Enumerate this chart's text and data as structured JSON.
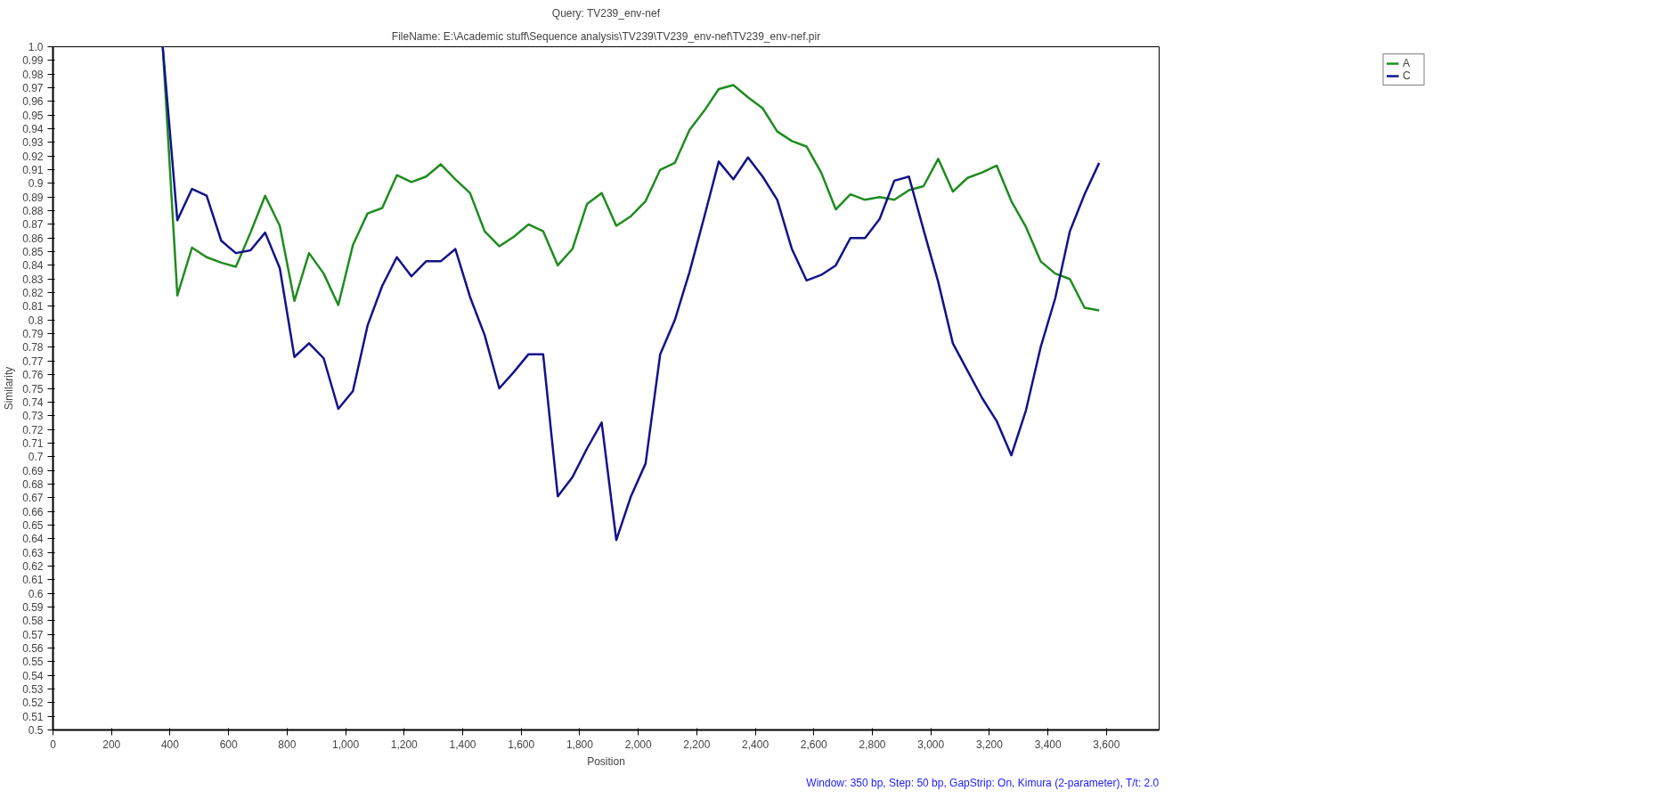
{
  "chart_data": {
    "type": "line",
    "title": "Query: TV239_env-nef",
    "subtitle": "FileName: E:\\Academic stuff\\Sequence analysis\\TV239\\TV239_env-nef\\TV239_env-nef.pir",
    "xlabel": "Position",
    "ylabel": "Similarity",
    "annotations": [
      "Window: 350 bp, Step: 50 bp, GapStrip: On, Kimura (2-parameter), T/t: 2.0"
    ],
    "x": [
      375,
      425,
      475,
      525,
      575,
      625,
      675,
      725,
      775,
      825,
      875,
      925,
      975,
      1025,
      1075,
      1125,
      1175,
      1225,
      1275,
      1325,
      1375,
      1425,
      1475,
      1525,
      1575,
      1625,
      1675,
      1725,
      1775,
      1825,
      1875,
      1925,
      1975,
      2025,
      2075,
      2125,
      2175,
      2225,
      2275,
      2325,
      2375,
      2425,
      2475,
      2525,
      2575,
      2625,
      2675,
      2725,
      2775,
      2825,
      2875,
      2925,
      2975,
      3025,
      3075,
      3125,
      3175,
      3225,
      3275,
      3325,
      3375,
      3425,
      3475,
      3525,
      3575
    ],
    "series": [
      {
        "name": "A",
        "color": "#1f8c1f",
        "values": [
          1.0,
          0.818,
          0.853,
          0.846,
          0.842,
          0.839,
          0.864,
          0.891,
          0.869,
          0.814,
          0.849,
          0.834,
          0.811,
          0.855,
          0.878,
          0.882,
          0.906,
          0.901,
          0.905,
          0.914,
          0.903,
          0.893,
          0.865,
          0.854,
          0.861,
          0.87,
          0.865,
          0.84,
          0.852,
          0.885,
          0.893,
          0.869,
          0.876,
          0.887,
          0.91,
          0.915,
          0.939,
          0.953,
          0.969,
          0.972,
          0.963,
          0.955,
          0.938,
          0.931,
          0.927,
          0.908,
          0.881,
          0.892,
          0.888,
          0.89,
          0.888,
          0.895,
          0.898,
          0.918,
          0.894,
          0.904,
          0.908,
          0.913,
          0.887,
          0.868,
          0.843,
          0.834,
          0.83,
          0.809,
          0.807
        ]
      },
      {
        "name": "C",
        "color": "#12128c",
        "values": [
          1.0,
          0.873,
          0.896,
          0.891,
          0.858,
          0.849,
          0.851,
          0.864,
          0.838,
          0.773,
          0.783,
          0.772,
          0.735,
          0.748,
          0.796,
          0.825,
          0.846,
          0.832,
          0.843,
          0.843,
          0.852,
          0.817,
          0.789,
          0.75,
          0.762,
          0.775,
          0.775,
          0.671,
          0.685,
          0.706,
          0.725,
          0.639,
          0.671,
          0.695,
          0.775,
          0.8,
          0.835,
          0.875,
          0.916,
          0.903,
          0.919,
          0.905,
          0.888,
          0.852,
          0.829,
          0.833,
          0.84,
          0.86,
          0.86,
          0.874,
          0.902,
          0.905,
          0.866,
          0.828,
          0.783,
          0.763,
          0.743,
          0.726,
          0.701,
          0.734,
          0.78,
          0.816,
          0.865,
          0.892,
          0.915
        ]
      }
    ],
    "xlim": [
      0,
      3780
    ],
    "xticks": [
      0,
      200,
      400,
      600,
      800,
      {
        "value": 1000,
        "label": "1,000"
      },
      {
        "value": 1200,
        "label": "1,200"
      },
      {
        "value": 1400,
        "label": "1,400"
      },
      {
        "value": 1600,
        "label": "1,600"
      },
      {
        "value": 1800,
        "label": "1,800"
      },
      {
        "value": 2000,
        "label": "2,000"
      },
      {
        "value": 2200,
        "label": "2,200"
      },
      {
        "value": 2400,
        "label": "2,400"
      },
      {
        "value": 2600,
        "label": "2,600"
      },
      {
        "value": 2800,
        "label": "2,800"
      },
      {
        "value": 3000,
        "label": "3,000"
      },
      {
        "value": 3200,
        "label": "3,200"
      },
      {
        "value": 3400,
        "label": "3,400"
      },
      {
        "value": 3600,
        "label": "3,600"
      }
    ],
    "ylim": [
      0.5,
      1.0
    ],
    "yticks": [
      0.5,
      0.51,
      0.52,
      0.53,
      0.54,
      0.55,
      0.56,
      0.57,
      0.58,
      0.59,
      0.6,
      0.61,
      0.62,
      0.63,
      0.64,
      0.65,
      0.66,
      0.67,
      0.68,
      0.69,
      0.7,
      0.71,
      0.72,
      0.73,
      0.74,
      0.75,
      0.76,
      0.77,
      0.78,
      0.79,
      0.8,
      0.81,
      0.82,
      0.83,
      0.84,
      0.85,
      0.86,
      0.87,
      0.88,
      0.89,
      0.9,
      0.91,
      0.92,
      0.93,
      0.94,
      0.95,
      0.96,
      0.97,
      0.98,
      0.99,
      {
        "value": 1.0,
        "label": "1.0"
      }
    ],
    "grid": false,
    "legend": "top right",
    "marker": "none",
    "line_style": "solid"
  }
}
